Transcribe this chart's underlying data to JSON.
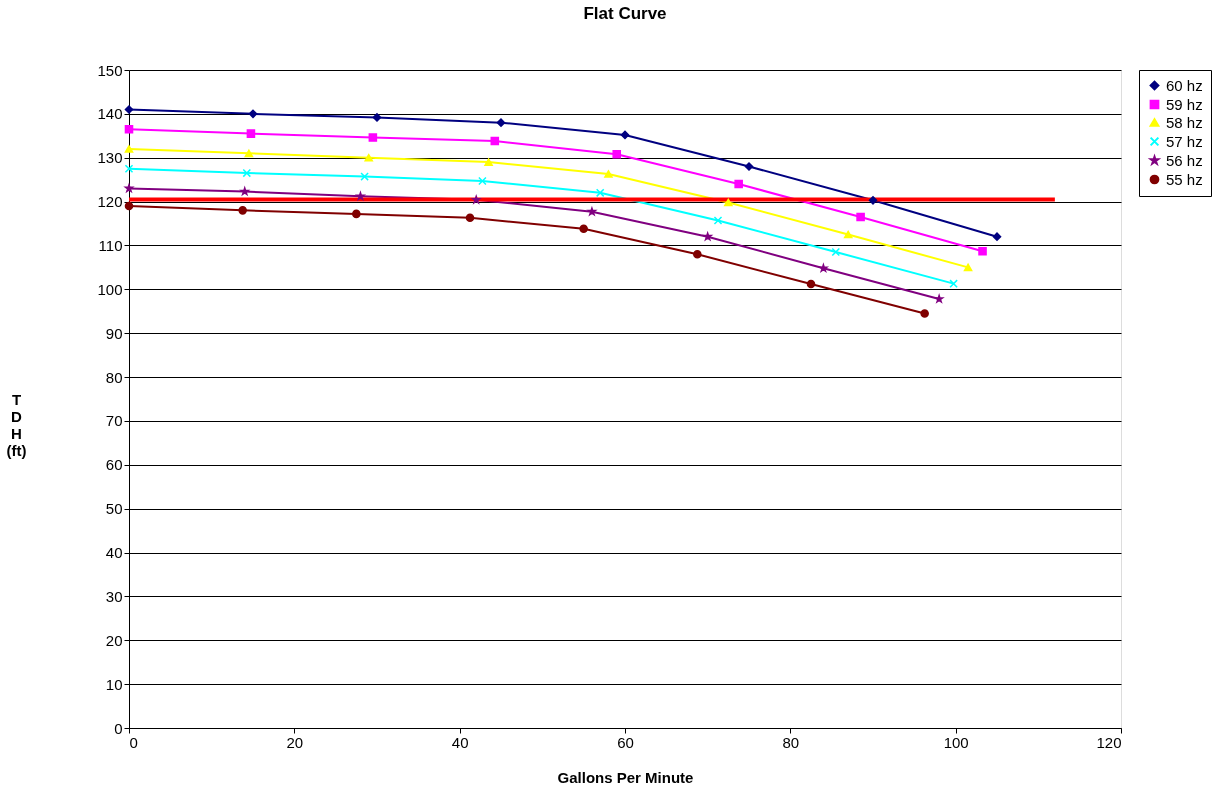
{
  "chart_data": {
    "type": "line",
    "title": "Flat Curve",
    "xlabel": "Gallons Per Minute",
    "ylabel": "TDH (ft)",
    "xlim": [
      0,
      120
    ],
    "xticks": [
      0,
      20,
      40,
      60,
      80,
      100,
      120
    ],
    "ylim": [
      0,
      150
    ],
    "yticks": [
      0,
      10,
      20,
      30,
      40,
      50,
      60,
      70,
      80,
      90,
      100,
      110,
      120,
      130,
      140,
      150
    ],
    "grid": "y",
    "legend": "right",
    "line_style": "solid",
    "series": [
      {
        "name": "60 hz",
        "color": "#000080",
        "marker": "diamond",
        "x": [
          0,
          15,
          30,
          45,
          60,
          75,
          90,
          105
        ],
        "values": [
          141,
          140,
          139.2,
          138,
          135.2,
          128,
          120.3,
          112
        ]
      },
      {
        "name": "59 hz",
        "color": "#ff00ff",
        "marker": "square",
        "x": [
          0,
          14.75,
          29.5,
          44.25,
          59,
          73.75,
          88.5,
          103.25
        ],
        "values": [
          136.5,
          135.5,
          134.6,
          133.8,
          130.8,
          124,
          116.5,
          108.7
        ]
      },
      {
        "name": "58 hz",
        "color": "#ffff00",
        "marker": "triangle",
        "x": [
          0,
          14.5,
          29,
          43.5,
          58,
          72.5,
          87,
          101.5
        ],
        "values": [
          132,
          131,
          130,
          129,
          126.3,
          119.8,
          112.5,
          105
        ]
      },
      {
        "name": "57 hz",
        "color": "#00ffff",
        "marker": "cross",
        "x": [
          0,
          14.25,
          28.5,
          42.75,
          57,
          71.25,
          85.5,
          99.75
        ],
        "values": [
          127.5,
          126.5,
          125.7,
          124.7,
          122,
          115.7,
          108.5,
          101.3
        ]
      },
      {
        "name": "56 hz",
        "color": "#800080",
        "marker": "star",
        "x": [
          0,
          14,
          28,
          42,
          56,
          70,
          84,
          98
        ],
        "values": [
          123,
          122.3,
          121.2,
          120.4,
          117.7,
          112,
          104.8,
          97.8
        ]
      },
      {
        "name": "55 hz",
        "color": "#800000",
        "marker": "circle",
        "x": [
          0,
          13.75,
          27.5,
          41.25,
          55,
          68.75,
          82.5,
          96.25
        ],
        "values": [
          119,
          118,
          117.2,
          116.3,
          113.8,
          108,
          101.2,
          94.5
        ]
      },
      {
        "color": "#ff0000",
        "marker": "none",
        "x": [
          0,
          112
        ],
        "values": [
          120.5,
          120.5
        ]
      }
    ]
  }
}
